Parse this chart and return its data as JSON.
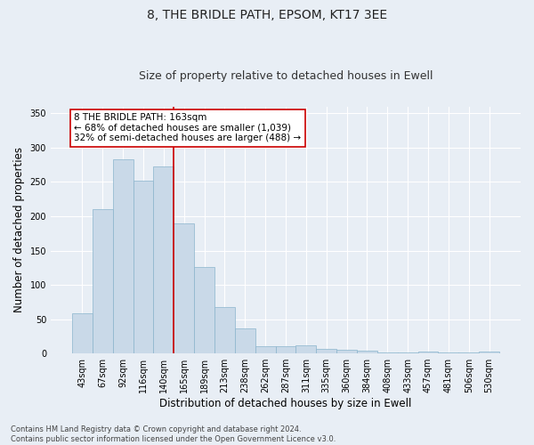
{
  "title_line1": "8, THE BRIDLE PATH, EPSOM, KT17 3EE",
  "title_line2": "Size of property relative to detached houses in Ewell",
  "xlabel": "Distribution of detached houses by size in Ewell",
  "ylabel": "Number of detached properties",
  "footnote": "Contains HM Land Registry data © Crown copyright and database right 2024.\nContains public sector information licensed under the Open Government Licence v3.0.",
  "bar_labels": [
    "43sqm",
    "67sqm",
    "92sqm",
    "116sqm",
    "140sqm",
    "165sqm",
    "189sqm",
    "213sqm",
    "238sqm",
    "262sqm",
    "287sqm",
    "311sqm",
    "335sqm",
    "360sqm",
    "384sqm",
    "408sqm",
    "433sqm",
    "457sqm",
    "481sqm",
    "506sqm",
    "530sqm"
  ],
  "bar_values": [
    58,
    210,
    283,
    252,
    272,
    190,
    126,
    68,
    36,
    10,
    10,
    12,
    7,
    6,
    4,
    2,
    1,
    3,
    1,
    2,
    3
  ],
  "bar_color": "#c9d9e8",
  "bar_edge_color": "#8ab4cc",
  "vline_x": 4.5,
  "vline_color": "#cc0000",
  "annotation_box_text": "8 THE BRIDLE PATH: 163sqm\n← 68% of detached houses are smaller (1,039)\n32% of semi-detached houses are larger (488) →",
  "ylim": [
    0,
    360
  ],
  "yticks": [
    0,
    50,
    100,
    150,
    200,
    250,
    300,
    350
  ],
  "background_color": "#e8eef5",
  "plot_bg_color": "#e8eef5",
  "grid_color": "#ffffff",
  "title_fontsize": 10,
  "subtitle_fontsize": 9,
  "tick_fontsize": 7,
  "label_fontsize": 8.5,
  "footnote_fontsize": 6,
  "annot_fontsize": 7.5
}
